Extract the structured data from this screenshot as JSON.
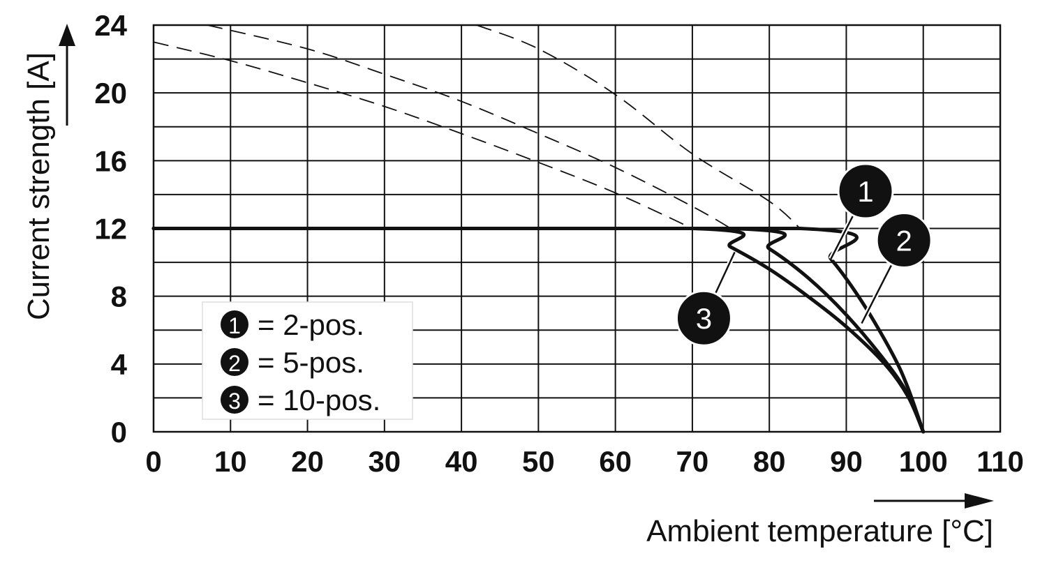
{
  "chart_data": {
    "type": "line",
    "xlabel": "Ambient temperature [°C]",
    "ylabel": "Current strength [A]",
    "xlim": [
      0,
      110
    ],
    "ylim": [
      0,
      24
    ],
    "x_ticks": [
      0,
      10,
      20,
      30,
      40,
      50,
      60,
      70,
      80,
      90,
      100,
      110
    ],
    "y_ticks": [
      0,
      4,
      8,
      12,
      16,
      20,
      24
    ],
    "x_minor_step": 10,
    "y_minor_step": 2,
    "grid": true,
    "legend_position": "bottom-left",
    "legend": [
      {
        "marker": "1",
        "label": "= 2-pos."
      },
      {
        "marker": "2",
        "label": "= 5-pos."
      },
      {
        "marker": "3",
        "label": "= 10-pos."
      }
    ],
    "series": [
      {
        "marker": "1",
        "style": "solid",
        "x": [
          0,
          84,
          88,
          92,
          96,
          98,
          100
        ],
        "y": [
          12,
          12,
          10.2,
          7.7,
          4.6,
          2.6,
          0
        ]
      },
      {
        "marker": "2",
        "style": "solid",
        "x": [
          0,
          75,
          80,
          85,
          90,
          95,
          98,
          100
        ],
        "y": [
          12,
          12,
          10.8,
          9.1,
          6.9,
          4.2,
          2.2,
          0
        ]
      },
      {
        "marker": "3",
        "style": "solid",
        "x": [
          0,
          70,
          75,
          80,
          85,
          90,
          95,
          98,
          100
        ],
        "y": [
          12,
          12,
          10.9,
          9.6,
          8.0,
          6.2,
          4.0,
          2.1,
          0
        ]
      },
      {
        "marker": "1",
        "style": "dashed",
        "x": [
          42,
          50,
          60,
          70,
          80,
          84
        ],
        "y": [
          24,
          22.6,
          19.9,
          16.4,
          13.6,
          12
        ]
      },
      {
        "marker": "2",
        "style": "dashed",
        "x": [
          7,
          20,
          30,
          40,
          50,
          60,
          70,
          75
        ],
        "y": [
          24,
          22.6,
          21.1,
          19.5,
          17.6,
          15.6,
          13.3,
          12
        ]
      },
      {
        "marker": "3",
        "style": "dashed",
        "x": [
          0,
          10,
          20,
          30,
          40,
          50,
          60,
          70
        ],
        "y": [
          23,
          21.9,
          20.6,
          19.2,
          17.6,
          15.9,
          14.1,
          12
        ]
      }
    ],
    "annotations": [
      {
        "marker": "1",
        "x": 92.5,
        "y": 14.2,
        "point_x": 88,
        "point_y": 10.2
      },
      {
        "marker": "2",
        "x": 97.5,
        "y": 11.3,
        "point_x": 92,
        "point_y": 6.4
      },
      {
        "marker": "3",
        "x": 71.5,
        "y": 6.7,
        "point_x": 75.5,
        "point_y": 10.6
      }
    ]
  },
  "colors": {
    "line": "#111111",
    "grid": "#111111",
    "badge_fill": "#111111",
    "badge_text": "#ffffff",
    "legend_border": "#dddddd"
  }
}
